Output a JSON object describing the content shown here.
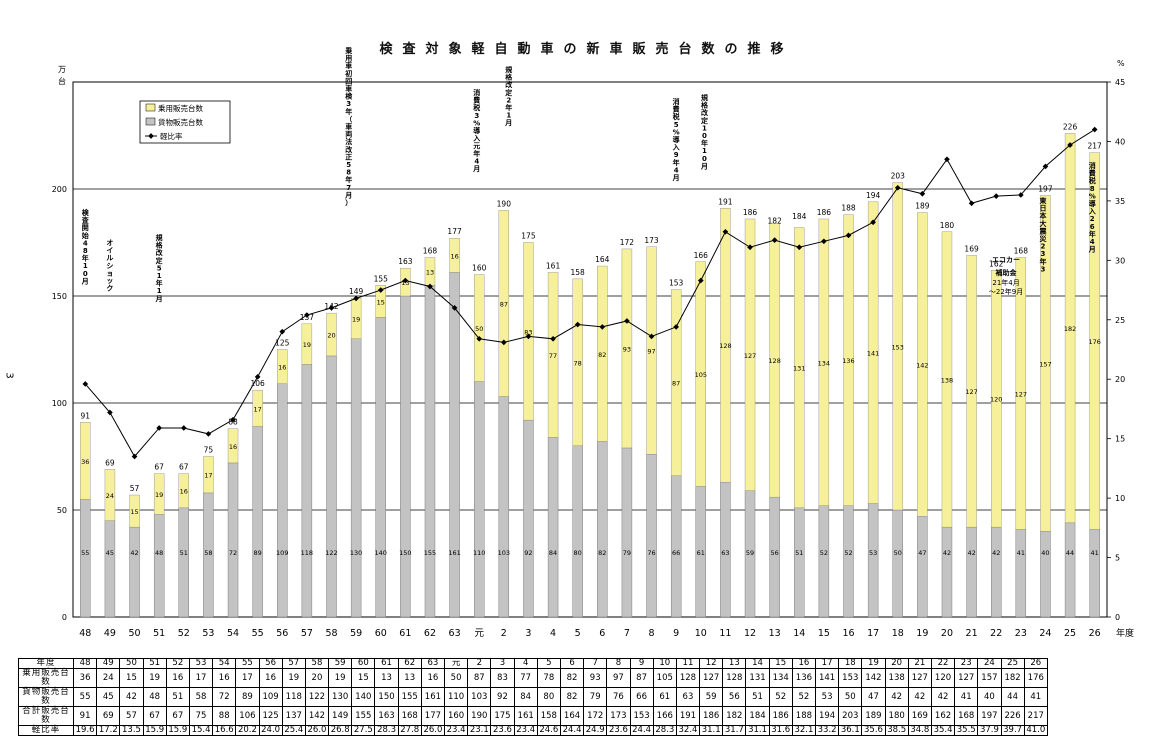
{
  "title": "検査対象軽自動車の新車販売台数の推移",
  "left_unit": "万\n台",
  "right_unit": "%",
  "x_unit": "年度",
  "side_number": "3",
  "legend": {
    "passenger": "乗用販売台数",
    "cargo": "貨物販売台数",
    "ratio": "軽比率"
  },
  "colors": {
    "passenger": "#f7f09a",
    "cargo": "#c3c3c3",
    "line": "#000000"
  },
  "annotations": [
    {
      "text": "検査開始48年10月",
      "at": "48"
    },
    {
      "text": "オイルショック",
      "at": "49"
    },
    {
      "text": "規格改定51年1月",
      "at": "51"
    },
    {
      "text": "乗用車初回車検3年（車両法改正58年7月）",
      "at": "58"
    },
    {
      "text": "消費税3%導入元年4月",
      "at": "元"
    },
    {
      "text": "規格改定2年1月",
      "at": "2"
    },
    {
      "text": "消費税5%導入9年4月",
      "at": "9"
    },
    {
      "text": "規格改定10年10月",
      "at": "10"
    },
    {
      "text": "エコカー補助金21年4月〜22年9月",
      "at": "22"
    },
    {
      "text": "東日本大震災23年3",
      "at": "24"
    },
    {
      "text": "消費税8%導入26年4月",
      "at": "26"
    }
  ],
  "table": {
    "row_labels": [
      "年度",
      "乗用販売台数",
      "貨物販売台数",
      "合計販売台数",
      "軽比率"
    ]
  },
  "chart_data": {
    "type": "bar",
    "stacked": true,
    "categories": [
      "48",
      "49",
      "50",
      "51",
      "52",
      "53",
      "54",
      "55",
      "56",
      "57",
      "58",
      "59",
      "60",
      "61",
      "62",
      "63",
      "元",
      "2",
      "3",
      "4",
      "5",
      "6",
      "7",
      "8",
      "9",
      "10",
      "11",
      "12",
      "13",
      "14",
      "15",
      "16",
      "17",
      "18",
      "19",
      "20",
      "21",
      "22",
      "23",
      "24",
      "25",
      "26"
    ],
    "series": [
      {
        "name": "貨物販売台数",
        "values": [
          55,
          45,
          42,
          48,
          51,
          58,
          72,
          89,
          109,
          118,
          122,
          130,
          140,
          150,
          155,
          161,
          110,
          103,
          92,
          84,
          80,
          82,
          79,
          76,
          66,
          61,
          63,
          59,
          56,
          51,
          52,
          52,
          53,
          50,
          47,
          42,
          42,
          42,
          41,
          40,
          44,
          41
        ]
      },
      {
        "name": "乗用販売台数",
        "values": [
          36,
          24,
          15,
          19,
          16,
          17,
          16,
          17,
          16,
          19,
          20,
          19,
          15,
          13,
          13,
          16,
          50,
          87,
          83,
          77,
          78,
          82,
          93,
          97,
          87,
          105,
          128,
          127,
          128,
          131,
          134,
          136,
          141,
          153,
          142,
          138,
          127,
          120,
          127,
          157,
          182,
          176
        ]
      },
      {
        "name": "合計販売台数",
        "values": [
          91,
          69,
          57,
          67,
          67,
          75,
          88,
          106,
          125,
          137,
          142,
          149,
          155,
          163,
          168,
          177,
          160,
          190,
          175,
          161,
          158,
          164,
          172,
          173,
          153,
          166,
          191,
          186,
          182,
          184,
          186,
          188,
          194,
          203,
          189,
          180,
          169,
          162,
          168,
          197,
          226,
          217
        ]
      },
      {
        "name": "軽比率",
        "axis": "right",
        "values": [
          19.6,
          17.2,
          13.5,
          15.9,
          15.9,
          15.4,
          16.6,
          20.2,
          24.0,
          25.4,
          26.0,
          26.8,
          27.5,
          28.3,
          27.8,
          26.0,
          23.4,
          23.1,
          23.6,
          23.4,
          24.6,
          24.4,
          24.9,
          23.6,
          24.4,
          28.3,
          32.4,
          31.1,
          31.7,
          31.1,
          31.6,
          32.1,
          33.2,
          36.1,
          35.6,
          38.5,
          34.8,
          35.4,
          35.5,
          37.9,
          39.7,
          41.0
        ]
      }
    ],
    "ylim": [
      0,
      250
    ],
    "yticks": [
      0,
      50,
      100,
      150,
      200
    ],
    "y2lim": [
      0,
      45
    ],
    "y2ticks": [
      0,
      5,
      10,
      15,
      20,
      25,
      30,
      35,
      40,
      45
    ]
  }
}
